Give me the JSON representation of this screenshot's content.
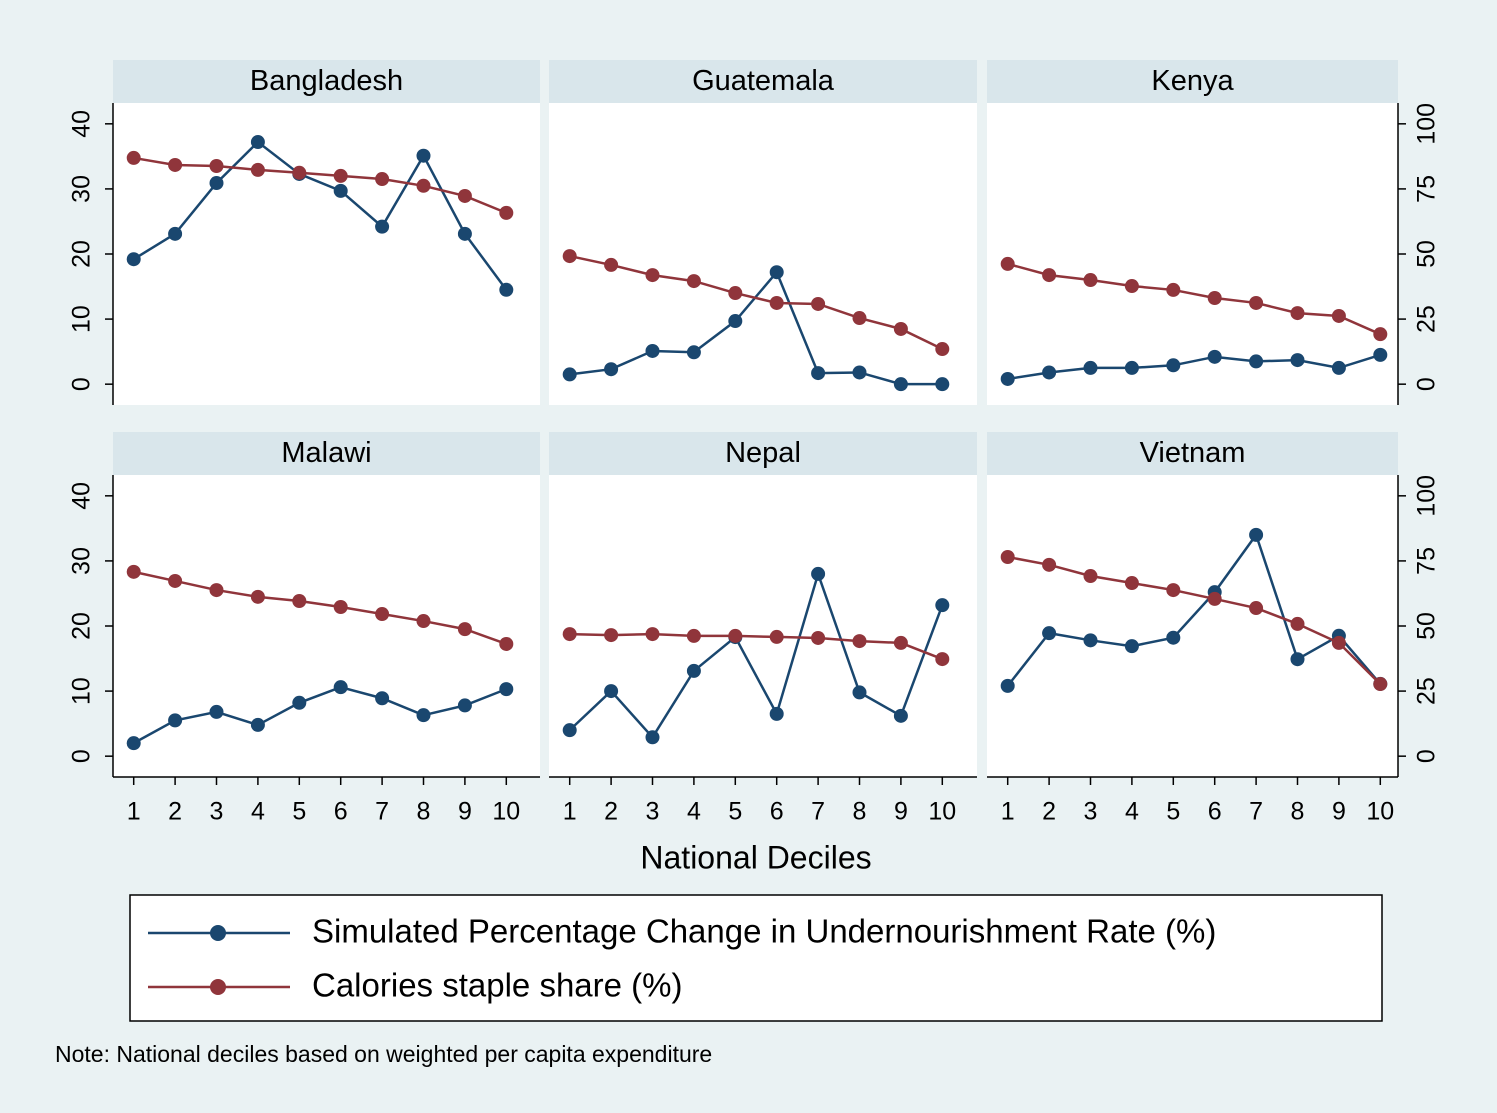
{
  "chart_data": {
    "type": "line",
    "xlabel": "National Deciles",
    "note": "Note: National deciles based on weighted per capita expenditure",
    "x": [
      1,
      2,
      3,
      4,
      5,
      6,
      7,
      8,
      9,
      10
    ],
    "xlim": [
      0.5,
      10.5
    ],
    "ylim": [
      -3.2,
      43.2
    ],
    "yticks": [
      0,
      10,
      20,
      30,
      40
    ],
    "y2lim": [
      -8,
      108
    ],
    "y2ticks": [
      0,
      25,
      50,
      75,
      100
    ],
    "series": [
      {
        "name": "Simulated Percentage Change in Undernourishment Rate (%)",
        "color": "#1a476f"
      },
      {
        "name": "Calories staple share (%)",
        "color": "#90353b",
        "axis": "y2"
      }
    ],
    "panels": [
      {
        "title": "Bangladesh",
        "series": [
          {
            "values": [
              19.2,
              23.1,
              30.9,
              37.2,
              32.3,
              29.7,
              24.2,
              35.1,
              23.1,
              14.5
            ]
          },
          {
            "values": [
              86.9,
              84.2,
              83.8,
              82.3,
              81.2,
              80.0,
              78.8,
              76.2,
              72.3,
              65.8
            ]
          }
        ]
      },
      {
        "title": "Guatemala",
        "series": [
          {
            "values": [
              1.5,
              2.3,
              5.1,
              4.9,
              9.7,
              17.2,
              1.7,
              1.8,
              0,
              0
            ]
          },
          {
            "values": [
              49.2,
              45.8,
              41.9,
              39.6,
              35.0,
              31.2,
              30.8,
              25.4,
              21.2,
              13.5
            ]
          }
        ]
      },
      {
        "title": "Kenya",
        "series": [
          {
            "values": [
              0.8,
              1.8,
              2.5,
              2.5,
              2.9,
              4.2,
              3.5,
              3.7,
              2.5,
              4.5
            ]
          },
          {
            "values": [
              46.2,
              41.9,
              40.0,
              37.7,
              36.2,
              33.1,
              31.2,
              27.3,
              26.2,
              19.2
            ]
          }
        ]
      },
      {
        "title": "Malawi",
        "series": [
          {
            "values": [
              2.0,
              5.5,
              6.8,
              4.8,
              8.2,
              10.6,
              8.9,
              6.3,
              7.8,
              10.3
            ]
          },
          {
            "values": [
              70.8,
              67.3,
              63.8,
              61.2,
              59.6,
              57.3,
              54.6,
              51.9,
              48.8,
              43.1
            ]
          }
        ]
      },
      {
        "title": "Nepal",
        "series": [
          {
            "values": [
              4.0,
              10.0,
              2.9,
              13.1,
              18.3,
              6.5,
              28.0,
              9.8,
              6.2,
              23.2
            ]
          },
          {
            "values": [
              46.9,
              46.5,
              46.9,
              46.2,
              46.2,
              45.8,
              45.4,
              44.2,
              43.5,
              37.3
            ]
          }
        ]
      },
      {
        "title": "Vietnam",
        "series": [
          {
            "values": [
              10.8,
              18.9,
              17.8,
              16.9,
              18.2,
              25.2,
              34.0,
              14.9,
              18.5,
              11.1
            ]
          },
          {
            "values": [
              76.5,
              73.5,
              69.2,
              66.5,
              63.8,
              60.4,
              56.9,
              50.8,
              43.5,
              27.7
            ]
          }
        ]
      }
    ]
  }
}
